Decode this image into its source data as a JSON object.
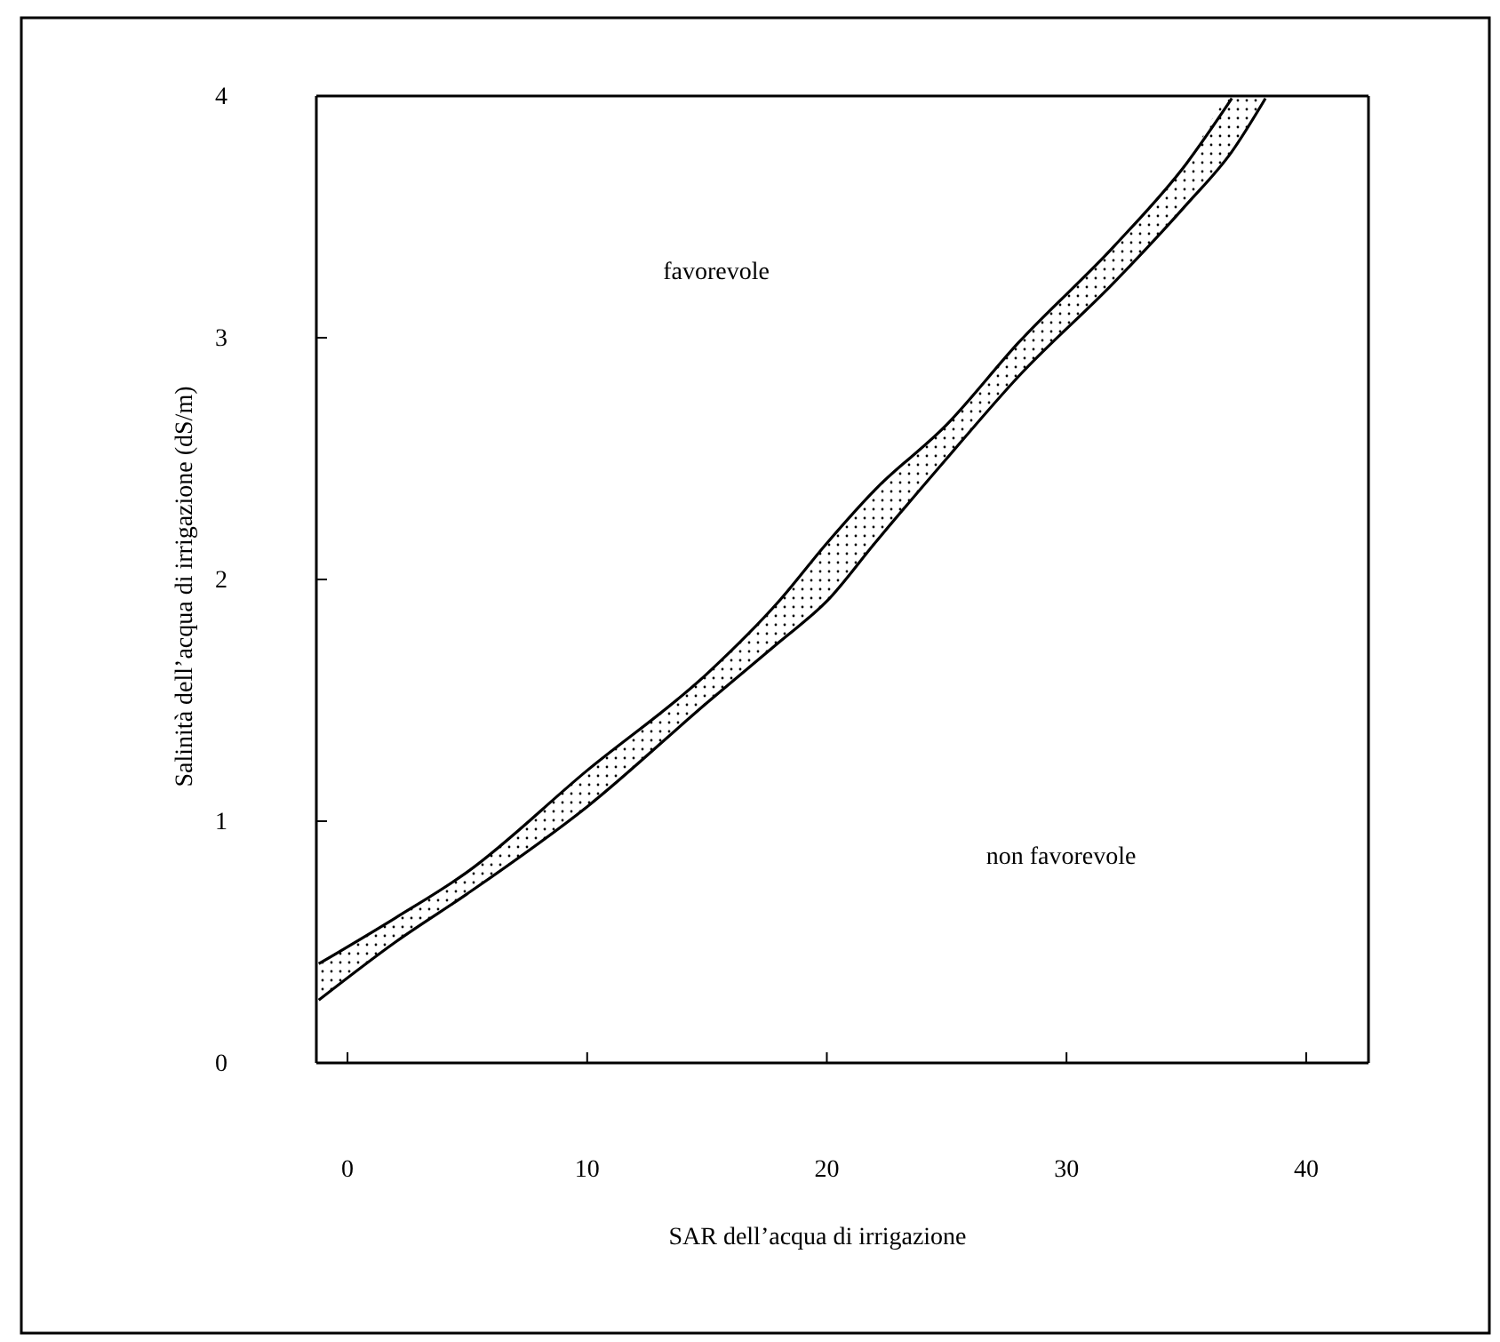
{
  "chart_data": {
    "type": "line",
    "xlabel": "SAR dell’acqua di irrigazione",
    "ylabel": "Salinità dell’acqua di irrigazione (dS/m)",
    "xlim": [
      -1.3,
      42.6
    ],
    "xticks": [
      0,
      10,
      20,
      30,
      40
    ],
    "ylim": [
      0,
      4
    ],
    "yticks": [
      0,
      1,
      2,
      3,
      4
    ],
    "grid": false,
    "marker": "none",
    "line_style": "solid",
    "annotations": [
      "favorevole",
      "non favorevole"
    ],
    "series": [
      {
        "color": "#000000",
        "x": [
          -1.2,
          2,
          5,
          10,
          15,
          18,
          20,
          22,
          25,
          28,
          32,
          35,
          36.9
        ],
        "values": [
          0.41,
          0.6,
          0.79,
          1.21,
          1.61,
          1.91,
          2.15,
          2.37,
          2.64,
          2.98,
          3.38,
          3.72,
          3.99
        ]
      },
      {
        "color": "#000000",
        "x": [
          -1.2,
          2,
          5,
          10,
          15,
          18,
          20,
          22,
          25,
          28,
          32,
          35,
          36.9,
          38.3
        ],
        "values": [
          0.26,
          0.5,
          0.7,
          1.06,
          1.49,
          1.74,
          1.91,
          2.15,
          2.5,
          2.84,
          3.23,
          3.55,
          3.77,
          3.99
        ],
        "upper": [
          0.41,
          0.6,
          0.79,
          1.21,
          1.61,
          1.91,
          2.15,
          2.37,
          2.64,
          2.98,
          3.38,
          3.72,
          3.99,
          4.0
        ],
        "lower": [
          0.26,
          0.5,
          0.7,
          1.06,
          1.49,
          1.74,
          1.91,
          2.15,
          2.5,
          2.84,
          3.23,
          3.55,
          3.77,
          3.99
        ]
      }
    ]
  }
}
